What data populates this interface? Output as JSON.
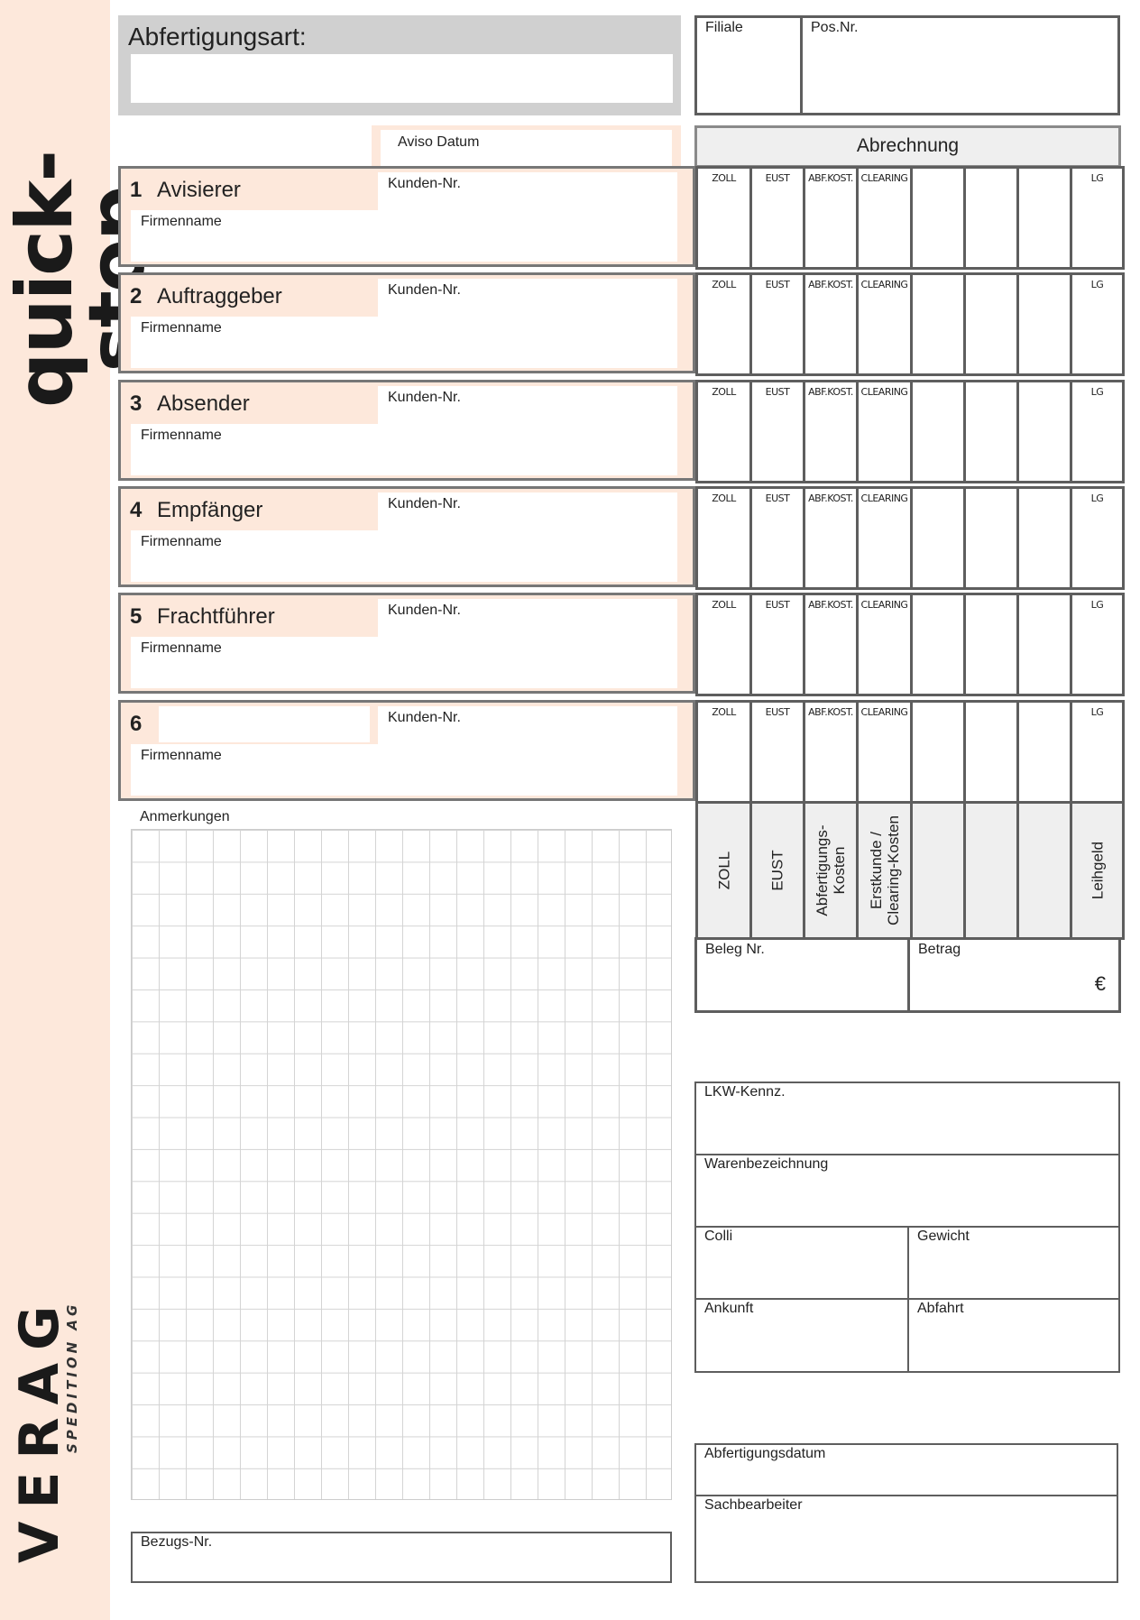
{
  "brand": {
    "product": "quick-stop",
    "logo_main": "VERAG",
    "logo_sub": "SPEDITION AG"
  },
  "header": {
    "abfertigungsart_label": "Abfertigungsart:",
    "abfertigungsart_value": "",
    "filiale_label": "Filiale",
    "posnr_label": "Pos.Nr.",
    "aviso_label": "Aviso Datum"
  },
  "sections": [
    {
      "num": "1",
      "title": "Avisierer",
      "kunden_label": "Kunden-Nr.",
      "firmenname_label": "Firmenname"
    },
    {
      "num": "2",
      "title": "Auftraggeber",
      "kunden_label": "Kunden-Nr.",
      "firmenname_label": "Firmenname"
    },
    {
      "num": "3",
      "title": "Absender",
      "kunden_label": "Kunden-Nr.",
      "firmenname_label": "Firmenname"
    },
    {
      "num": "4",
      "title": "Empfänger",
      "kunden_label": "Kunden-Nr.",
      "firmenname_label": "Firmenname"
    },
    {
      "num": "5",
      "title": "Frachtführer",
      "kunden_label": "Kunden-Nr.",
      "firmenname_label": "Firmenname"
    },
    {
      "num": "6",
      "title": "",
      "kunden_label": "Kunden-Nr.",
      "firmenname_label": "Firmenname"
    }
  ],
  "abrechnung": {
    "title": "Abrechnung",
    "short_columns": [
      "ZOLL",
      "EUST",
      "ABF.KOST.",
      "CLEARING",
      "",
      "",
      "",
      "LG"
    ],
    "long_columns": [
      "ZOLL",
      "EUST",
      "Abfertigungs-\nKosten",
      "Erstkunde /\nClearing-Kosten",
      "",
      "",
      "",
      "Leihgeld"
    ],
    "beleg_label": "Beleg Nr.",
    "betrag_label": "Betrag",
    "currency": "€"
  },
  "anmerkungen_label": "Anmerkungen",
  "bezugs_label": "Bezugs-Nr.",
  "details": {
    "lkw": "LKW-Kennz.",
    "waren": "Warenbezeichnung",
    "colli": "Colli",
    "gewicht": "Gewicht",
    "ankunft": "Ankunft",
    "abfahrt": "Abfahrt"
  },
  "footer": {
    "abfertigungsdatum": "Abfertigungsdatum",
    "sachbearbeiter": "Sachbearbeiter"
  },
  "colors": {
    "accent": "#fde8db",
    "header_gray": "#d0d0d0",
    "border": "#5e5e5e"
  }
}
